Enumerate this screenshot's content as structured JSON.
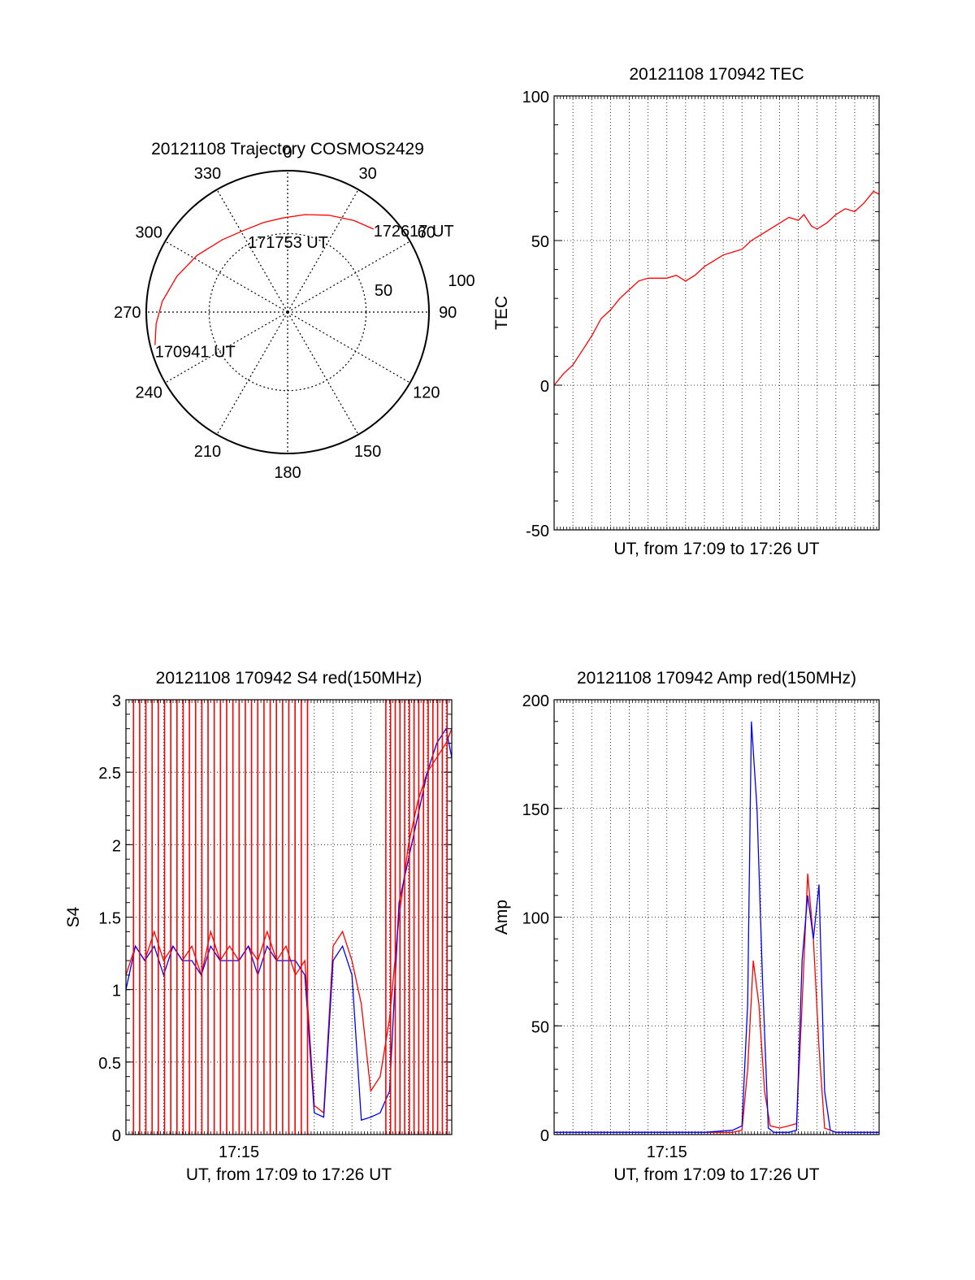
{
  "colors": {
    "red_channel": "#ff0000",
    "blue_channel": "#0000ff",
    "axes": "#000000",
    "grid": "#000000"
  },
  "chart_data": [
    {
      "id": "trajectory",
      "type": "polar",
      "title": "20121108 Trajectory COSMOS2429",
      "azimuth_labels": [
        "0",
        "30",
        "60",
        "90",
        "120",
        "150",
        "180",
        "210",
        "240",
        "270",
        "300",
        "330"
      ],
      "radial_labels": [
        "50",
        "100"
      ],
      "grid": true,
      "track": {
        "color": "#ff0000",
        "points": [
          {
            "az": 256,
            "r": 87
          },
          {
            "az": 265,
            "r": 84
          },
          {
            "az": 275,
            "r": 80
          },
          {
            "az": 288,
            "r": 74
          },
          {
            "az": 302,
            "r": 68
          },
          {
            "az": 318,
            "r": 62
          },
          {
            "az": 332,
            "r": 59
          },
          {
            "az": 345,
            "r": 59
          },
          {
            "az": 357,
            "r": 60
          },
          {
            "az": 10,
            "r": 63
          },
          {
            "az": 23,
            "r": 67
          },
          {
            "az": 36,
            "r": 72
          },
          {
            "az": 46,
            "r": 76
          }
        ]
      },
      "annotations": [
        "170941 UT",
        "171753 UT",
        "172617 UT"
      ]
    },
    {
      "id": "tec",
      "type": "line",
      "title": "20121108 170942 TEC",
      "ylabel": "TEC",
      "xlabel": "UT, from 17:09 to 17:26 UT",
      "ylim": [
        -50,
        100
      ],
      "yticks": [
        "100",
        "50",
        "0",
        "-50"
      ],
      "xlim_minutes": [
        0,
        17.3
      ],
      "grid": true,
      "series": [
        {
          "color": "#ff0000",
          "x": [
            0.0,
            0.5,
            1.0,
            1.5,
            2.0,
            2.5,
            3.0,
            3.5,
            4.0,
            4.5,
            5.0,
            5.5,
            6.0,
            6.5,
            7.0,
            7.5,
            8.0,
            8.5,
            9.0,
            9.5,
            10.0,
            10.5,
            11.0,
            11.5,
            12.0,
            12.5,
            13.0,
            13.3,
            13.7,
            14.0,
            14.5,
            15.0,
            15.5,
            16.0,
            16.5,
            17.0,
            17.3
          ],
          "values": [
            0,
            4,
            7,
            12,
            17,
            23,
            26,
            30,
            33,
            36,
            37,
            37,
            37,
            38,
            36,
            38,
            41,
            43,
            45,
            46,
            47,
            50,
            52,
            54,
            56,
            58,
            57,
            59,
            55,
            54,
            56,
            59,
            61,
            60,
            63,
            67,
            66
          ]
        }
      ]
    },
    {
      "id": "s4",
      "type": "line",
      "title": "20121108 170942 S4 red(150MHz)",
      "ylabel": "S4",
      "xlabel": "UT, from 17:09 to 17:26 UT",
      "ylim": [
        0,
        3
      ],
      "yticks": [
        "3",
        "2.5",
        "2",
        "1.5",
        "1",
        "0.5",
        "0"
      ],
      "xtick_labels": [
        "17:15"
      ],
      "xlim_minutes": [
        0,
        17.3
      ],
      "grid": true,
      "series": [
        {
          "color": "#ff0000",
          "x": [
            0.0,
            0.5,
            1.0,
            1.5,
            2.0,
            2.5,
            3.0,
            3.5,
            4.0,
            4.5,
            5.0,
            5.5,
            6.0,
            6.5,
            7.0,
            7.5,
            8.0,
            8.5,
            9.0,
            9.5,
            10.0,
            10.5,
            11.0,
            11.5,
            12.0,
            12.5,
            13.0,
            13.5,
            14.0,
            14.5,
            15.0,
            15.5,
            16.0,
            16.5,
            17.0,
            17.3
          ],
          "values": [
            1.1,
            1.3,
            1.2,
            1.4,
            1.2,
            1.3,
            1.2,
            1.3,
            1.1,
            1.4,
            1.2,
            1.3,
            1.2,
            1.3,
            1.2,
            1.4,
            1.2,
            1.3,
            1.1,
            1.2,
            0.2,
            0.15,
            1.3,
            1.4,
            1.2,
            0.9,
            0.3,
            0.4,
            0.8,
            1.5,
            2.0,
            2.3,
            2.5,
            2.6,
            2.7,
            2.8
          ]
        },
        {
          "color": "#0000ff",
          "x": [
            0.0,
            0.5,
            1.0,
            1.5,
            2.0,
            2.5,
            3.0,
            3.5,
            4.0,
            4.5,
            5.0,
            5.5,
            6.0,
            6.5,
            7.0,
            7.5,
            8.0,
            8.5,
            9.0,
            9.5,
            10.0,
            10.5,
            11.0,
            11.5,
            12.0,
            12.5,
            13.0,
            13.5,
            14.0,
            14.5,
            15.0,
            15.5,
            16.0,
            16.5,
            17.0,
            17.3
          ],
          "values": [
            1.0,
            1.3,
            1.2,
            1.3,
            1.1,
            1.3,
            1.2,
            1.2,
            1.1,
            1.3,
            1.2,
            1.2,
            1.2,
            1.3,
            1.1,
            1.3,
            1.2,
            1.2,
            1.2,
            1.1,
            0.15,
            0.12,
            1.2,
            1.3,
            1.1,
            0.1,
            0.12,
            0.15,
            0.3,
            1.6,
            1.9,
            2.2,
            2.5,
            2.7,
            2.8,
            2.6
          ]
        }
      ]
    },
    {
      "id": "amp",
      "type": "line",
      "title": "20121108 170942 Amp red(150MHz)",
      "ylabel": "Amp",
      "xlabel": "UT, from 17:09 to 17:26 UT",
      "ylim": [
        0,
        200
      ],
      "yticks": [
        "200",
        "150",
        "100",
        "50",
        "0"
      ],
      "xtick_labels": [
        "17:15"
      ],
      "xlim_minutes": [
        0,
        17.3
      ],
      "grid": true,
      "series": [
        {
          "color": "#ff0000",
          "x": [
            0.0,
            2.0,
            4.0,
            6.0,
            8.0,
            9.5,
            10.0,
            10.3,
            10.6,
            10.9,
            11.2,
            11.5,
            12.0,
            12.5,
            12.9,
            13.2,
            13.5,
            13.8,
            14.1,
            14.4,
            15.0,
            17.3
          ],
          "values": [
            1,
            1,
            1,
            1,
            1,
            1,
            2,
            30,
            80,
            60,
            20,
            4,
            3,
            4,
            5,
            60,
            120,
            90,
            40,
            3,
            1,
            1
          ]
        },
        {
          "color": "#0000ff",
          "x": [
            0.0,
            2.0,
            4.0,
            6.0,
            8.0,
            9.5,
            10.0,
            10.3,
            10.5,
            10.8,
            11.1,
            11.4,
            11.7,
            12.0,
            12.5,
            12.9,
            13.2,
            13.5,
            13.8,
            14.1,
            14.4,
            14.7,
            15.0,
            17.3
          ],
          "values": [
            1,
            1,
            1,
            1,
            1,
            2,
            4,
            60,
            190,
            150,
            70,
            3,
            1,
            1,
            1,
            2,
            80,
            110,
            90,
            115,
            20,
            2,
            1,
            1
          ]
        }
      ]
    }
  ]
}
